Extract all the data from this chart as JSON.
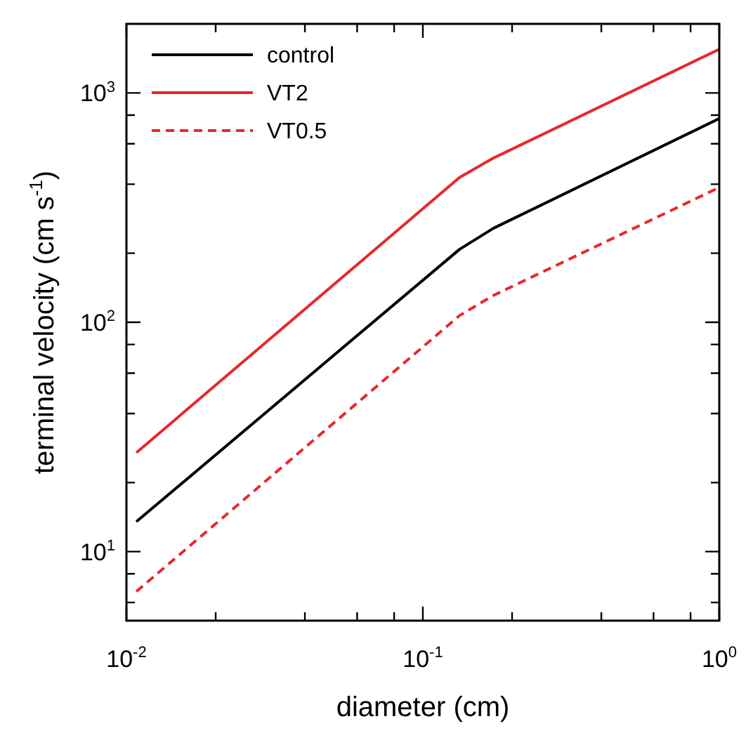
{
  "chart_data": {
    "type": "line",
    "xlabel": "diameter (cm)",
    "ylabel": "terminal velocity (cm s$^{-1}$)",
    "log": "xy",
    "grid": false,
    "legend": "top left",
    "marker": "none",
    "xlim": [
      0.01,
      1
    ],
    "ylim": [
      5,
      2000
    ],
    "xticks": [
      {
        "value": 0.01,
        "label": "10$^{-2}$"
      },
      {
        "value": 0.02,
        "label": null
      },
      {
        "value": 0.04,
        "label": null
      },
      {
        "value": 0.06,
        "label": null
      },
      {
        "value": 0.08,
        "label": null
      },
      {
        "value": 0.1,
        "label": "10$^{-1}$"
      },
      {
        "value": 0.2,
        "label": null
      },
      {
        "value": 0.4,
        "label": null
      },
      {
        "value": 0.6,
        "label": null
      },
      {
        "value": 0.8,
        "label": null
      },
      {
        "value": 1,
        "label": "10$^{0}$"
      }
    ],
    "yticks": [
      {
        "value": 6,
        "label": null
      },
      {
        "value": 8,
        "label": null
      },
      {
        "value": 10,
        "label": "10$^{1}$"
      },
      {
        "value": 20,
        "label": null
      },
      {
        "value": 40,
        "label": null
      },
      {
        "value": 60,
        "label": null
      },
      {
        "value": 80,
        "label": null
      },
      {
        "value": 100,
        "label": "10$^{2}$"
      },
      {
        "value": 200,
        "label": null
      },
      {
        "value": 400,
        "label": null
      },
      {
        "value": 600,
        "label": null
      },
      {
        "value": 800,
        "label": null
      },
      {
        "value": 1000,
        "label": "10$^{3}$"
      }
    ],
    "series": [
      {
        "name": "control",
        "color": "#000000",
        "line_style": "solid",
        "x": [
          0.0108,
          0.133,
          0.173,
          1
        ],
        "values": [
          13.5,
          208,
          257,
          773
        ]
      },
      {
        "name": "VT2",
        "color": "#e8282b",
        "line_style": "solid",
        "x": [
          0.0108,
          0.133,
          0.173,
          1
        ],
        "values": [
          27,
          428,
          520,
          1550
        ]
      },
      {
        "name": "VT0.5",
        "color": "#e8282b",
        "line_style": "dashed",
        "x": [
          0.0108,
          0.133,
          0.173,
          1
        ],
        "values": [
          6.7,
          107,
          131,
          387
        ]
      }
    ]
  }
}
